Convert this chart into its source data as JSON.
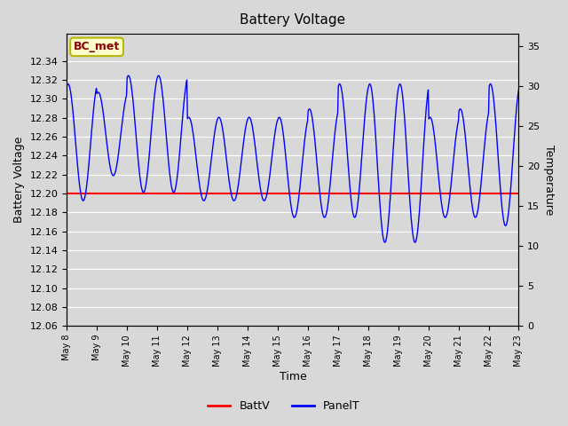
{
  "title": "Battery Voltage",
  "xlabel": "Time",
  "ylabel_left": "Battery Voltage",
  "ylabel_right": "Temperature",
  "ylim_left": [
    12.06,
    12.3686
  ],
  "ylim_right": [
    0,
    36.5
  ],
  "yticks_left": [
    12.06,
    12.08,
    12.1,
    12.12,
    12.14,
    12.16,
    12.18,
    12.2,
    12.22,
    12.24,
    12.26,
    12.28,
    12.3,
    12.32,
    12.34
  ],
  "yticks_right": [
    0,
    5,
    10,
    15,
    20,
    25,
    30,
    35
  ],
  "batt_voltage": 12.2,
  "bg_color": "#d8d8d8",
  "plot_bg_color": "#d8d8d8",
  "bc_met_text": "BC_met",
  "bc_met_text_color": "#8b0000",
  "bc_met_bg": "#ffffcc",
  "bc_met_border": "#b8b800",
  "temp_min": 0,
  "temp_max": 35,
  "volt_min": 12.06,
  "volt_max": 12.3686,
  "day_peaks": [
    29,
    28,
    30,
    30,
    25,
    25,
    25,
    25,
    26,
    29,
    29,
    29,
    25,
    26,
    29
  ],
  "day_troughs": [
    15,
    18,
    16,
    16,
    15,
    15,
    15,
    13,
    13,
    13,
    10,
    10,
    13,
    13,
    12
  ],
  "n_days": 15,
  "xtick_labels": [
    "May 8",
    "May 9",
    "May 10",
    "May 11",
    "May 12",
    "May 13",
    "May 14",
    "May 15",
    "May 16",
    "May 17",
    "May 18",
    "May 19",
    "May 20",
    "May 21",
    "May 22",
    "May 23"
  ],
  "grid_color": "#ffffff",
  "grid_linewidth": 0.8
}
